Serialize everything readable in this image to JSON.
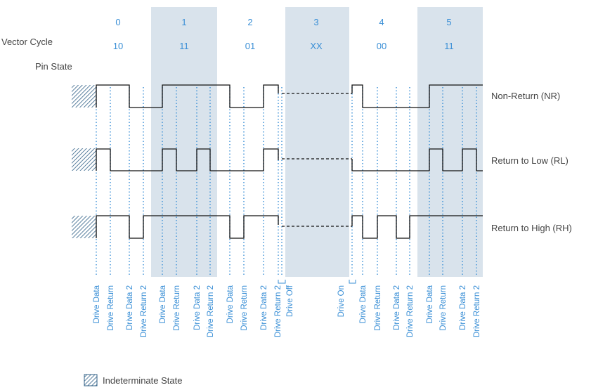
{
  "header": {
    "vector_cycle_label": "Vector Cycle",
    "pin_state_label": "Pin State"
  },
  "cycles": [
    {
      "index": "0",
      "state": "10",
      "shaded": false
    },
    {
      "index": "1",
      "state": "11",
      "shaded": true
    },
    {
      "index": "2",
      "state": "01",
      "shaded": false
    },
    {
      "index": "3",
      "state": "XX",
      "shaded": true
    },
    {
      "index": "4",
      "state": "00",
      "shaded": false
    },
    {
      "index": "5",
      "state": "11",
      "shaded": true
    }
  ],
  "signals": [
    {
      "label": "Non-Return (NR)"
    },
    {
      "label": "Return to Low (RL)"
    },
    {
      "label": "Return to High (RH)"
    }
  ],
  "events": [
    "Drive Data",
    "Drive Return",
    "Drive Data 2",
    "Drive Return 2",
    "Drive Data",
    "Drive Return",
    "Drive Data 2",
    "Drive Return 2",
    "Drive Data",
    "Drive Return",
    "Drive Data 2",
    "Drive Return 2",
    "Drive Off",
    "Drive On",
    "Drive Data",
    "Drive Return",
    "Drive Data 2",
    "Drive Return 2",
    "Drive Data",
    "Drive Return",
    "Drive Data 2",
    "Drive Return 2"
  ],
  "legend": {
    "label": "Indeterminate State"
  },
  "colors": {
    "accent": "#3a8fd6",
    "shade": "#d9e3ec",
    "waveform": "#111111",
    "text": "#444444"
  }
}
